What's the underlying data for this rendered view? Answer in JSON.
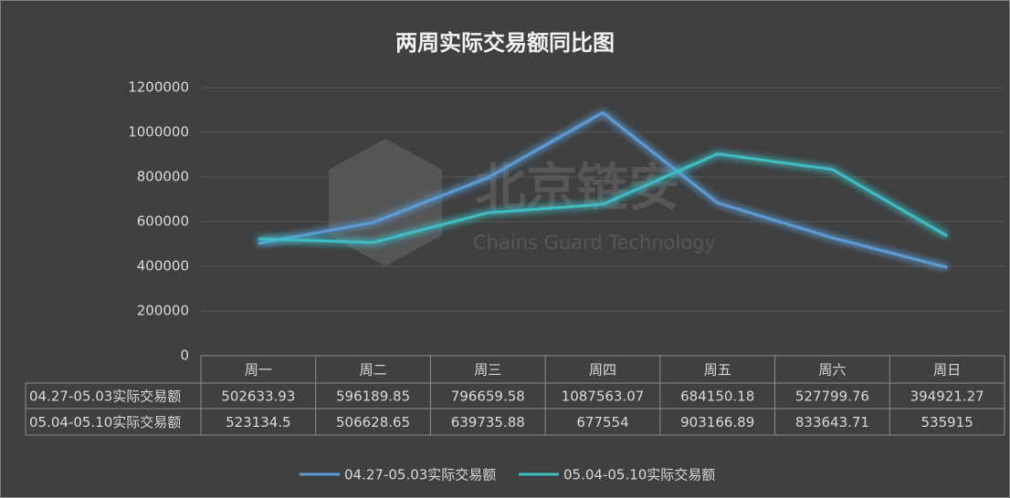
{
  "chart_data": {
    "type": "line",
    "title": "两周实际交易额同比图",
    "categories": [
      "周一",
      "周二",
      "周三",
      "周四",
      "周五",
      "周六",
      "周日"
    ],
    "series": [
      {
        "name": "04.27-05.03实际交易额",
        "color": "#5b9bd5",
        "values": [
          502633.93,
          596189.85,
          796659.58,
          1087563.07,
          684150.18,
          527799.76,
          394921.27
        ]
      },
      {
        "name": "05.04-05.10实际交易额",
        "color": "#3fbcc4",
        "values": [
          523134.5,
          506628.65,
          639735.88,
          677554,
          903166.89,
          833643.71,
          535915
        ]
      }
    ],
    "ylim": [
      0,
      1200000
    ],
    "yticks": [
      0,
      200000,
      400000,
      600000,
      800000,
      1000000,
      1200000
    ],
    "grid": true,
    "legend": "bottom",
    "watermark": {
      "name": "北京链安",
      "subtitle": "Chains Guard Technology"
    }
  }
}
